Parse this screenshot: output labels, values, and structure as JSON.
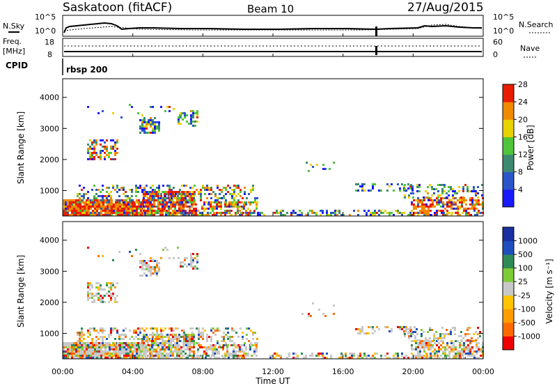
{
  "header": {
    "station": "Saskatoon (fitACF)",
    "beam": "Beam 10",
    "date": "27/Aug/2015"
  },
  "status_panel": {
    "nsky_label": "N.Sky",
    "nsearch_label": "N.Search",
    "freq_label": "Freq.",
    "freq_unit": "[MHz]",
    "nave_label": "Nave",
    "cpid_label": "CPID",
    "cpid_value": "rbsp 200",
    "nsky_ticks": [
      "10^5",
      "10^0"
    ],
    "nsearch_ticks": [
      "10^5",
      "10^0"
    ],
    "freq_ticks": [
      "18",
      "8"
    ],
    "nave_ticks": [
      "60",
      "0"
    ]
  },
  "chart_data": [
    {
      "type": "heatmap",
      "name": "power",
      "ylabel": "Slant Range [km]",
      "y_ticks": [
        "1000",
        "2000",
        "3000",
        "4000"
      ],
      "ylim": [
        180,
        4600
      ],
      "colorbar": {
        "label": "Power [dB]",
        "ticks": [
          "4",
          "8",
          "12",
          "16",
          "20",
          "24",
          "28"
        ],
        "colors": [
          "#1a1aff",
          "#2b55c8",
          "#3d8a70",
          "#50c43a",
          "#e8d200",
          "#f08a00",
          "#e81c00"
        ]
      }
    },
    {
      "type": "heatmap",
      "name": "velocity",
      "ylabel": "Slant Range [km]",
      "y_ticks": [
        "1000",
        "2000",
        "3000",
        "4000"
      ],
      "ylim": [
        180,
        4600
      ],
      "colorbar": {
        "label": "Velocity [m s⁻¹]",
        "ticks": [
          "-1000",
          "-500",
          "-100",
          "-25",
          "25",
          "100",
          "500",
          "1000"
        ],
        "colors": [
          "#ee0000",
          "#ff6a00",
          "#ff9c00",
          "#ffc400",
          "#c8c8c8",
          "#7ecb38",
          "#2e8b57",
          "#1d4fbe",
          "#1a2fa0"
        ]
      }
    }
  ],
  "time_axis": {
    "label": "Time UT",
    "ticks": [
      "00:00",
      "04:00",
      "08:00",
      "12:00",
      "16:00",
      "20:00",
      "00:00"
    ]
  }
}
